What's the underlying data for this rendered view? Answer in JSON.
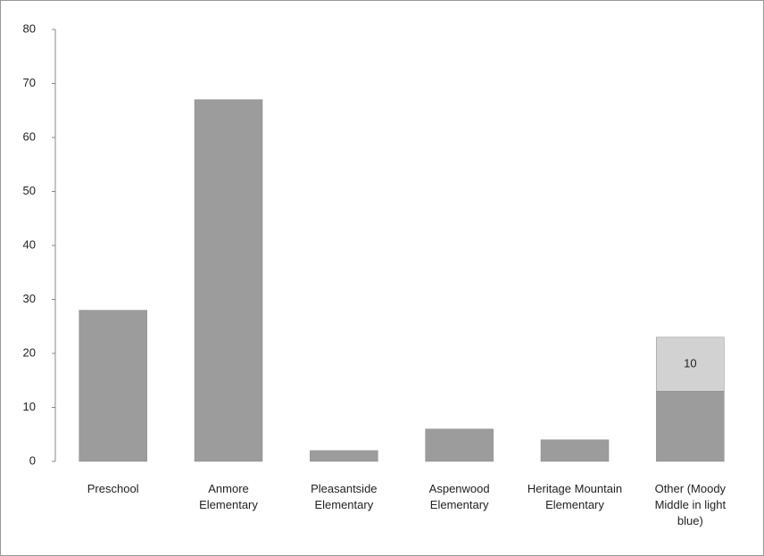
{
  "chart_data": {
    "type": "stacked_bar",
    "categories": [
      "Preschool",
      "Anmore Elementary",
      "Pleasantside Elementary",
      "Aspenwood Elementary",
      "Heritage Mountain Elementary",
      "Other (Moody Middle in light blue)"
    ],
    "series": [
      {
        "color": "#9c9c9c",
        "values": [
          28,
          67,
          2,
          6,
          4,
          13
        ]
      },
      {
        "color": "#d2d2d2",
        "values": [
          null,
          null,
          null,
          null,
          null,
          10
        ],
        "data_labels": true
      }
    ],
    "ylim": [
      0,
      80
    ],
    "yticks": [
      0,
      10,
      20,
      30,
      40,
      50,
      60,
      70,
      80
    ],
    "grid": false
  }
}
